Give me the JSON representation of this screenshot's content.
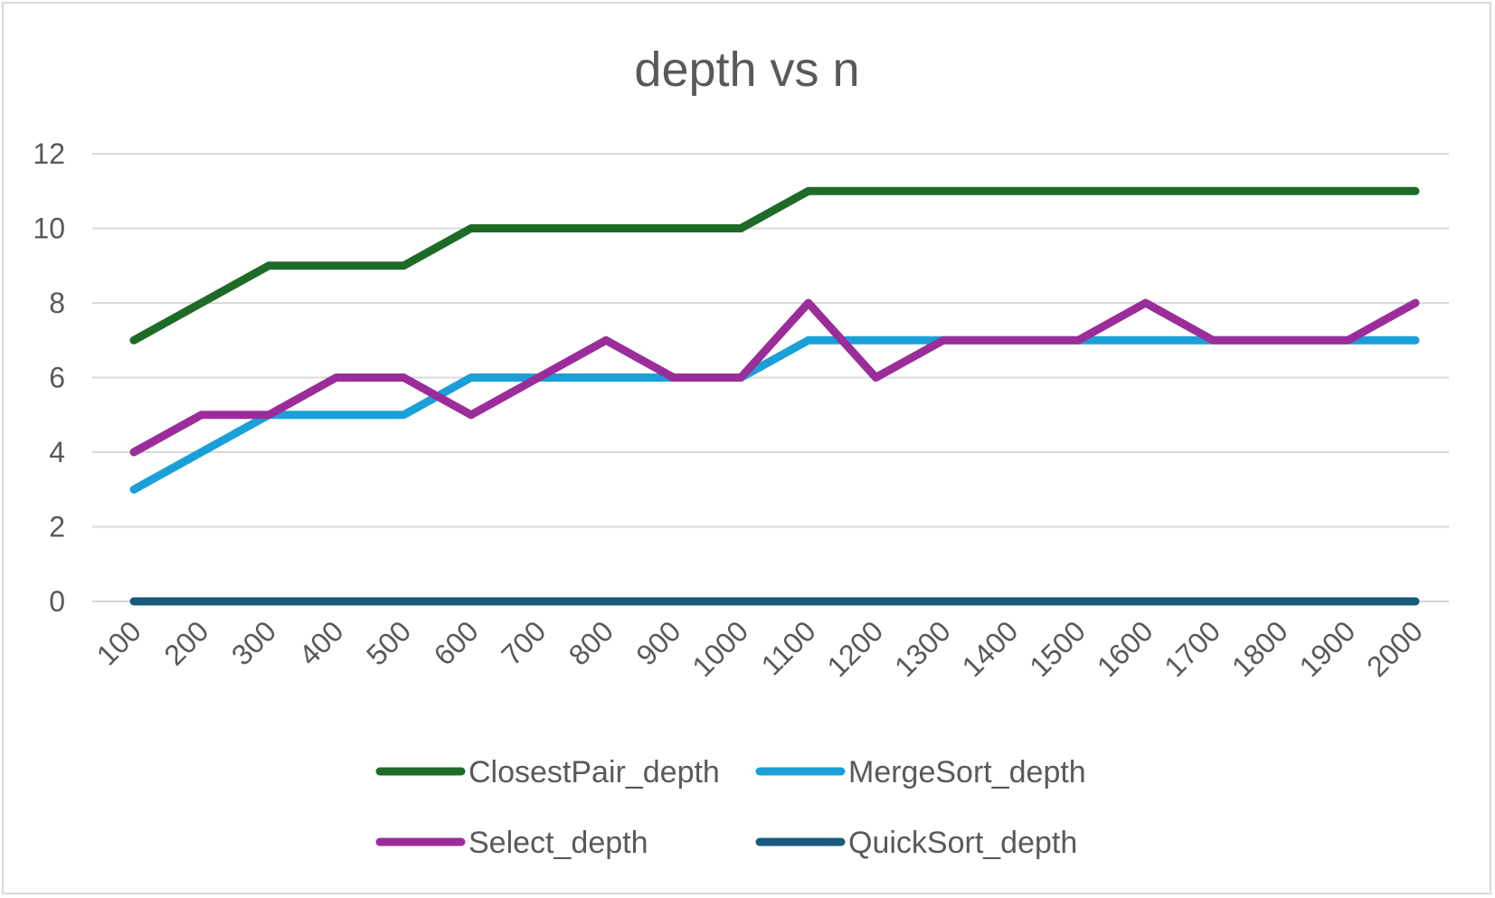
{
  "chart_data": {
    "type": "line",
    "title": "depth vs n",
    "xlabel": "",
    "ylabel": "",
    "categories": [
      "100",
      "200",
      "300",
      "400",
      "500",
      "600",
      "700",
      "800",
      "900",
      "1000",
      "1100",
      "1200",
      "1300",
      "1400",
      "1500",
      "1600",
      "1700",
      "1800",
      "1900",
      "2000"
    ],
    "ylim": [
      0,
      12
    ],
    "yticks": [
      0,
      2,
      4,
      6,
      8,
      10,
      12
    ],
    "grid": true,
    "legend_position": "bottom",
    "series": [
      {
        "name": "ClosestPair_depth",
        "color": "#1e6b28",
        "values": [
          7,
          8,
          9,
          9,
          9,
          10,
          10,
          10,
          10,
          10,
          11,
          11,
          11,
          11,
          11,
          11,
          11,
          11,
          11,
          11
        ]
      },
      {
        "name": "MergeSort_depth",
        "color": "#1aa0d8",
        "values": [
          3,
          4,
          5,
          5,
          5,
          6,
          6,
          6,
          6,
          6,
          7,
          7,
          7,
          7,
          7,
          7,
          7,
          7,
          7,
          7
        ]
      },
      {
        "name": "Select_depth",
        "color": "#9b2d9b",
        "values": [
          4,
          5,
          5,
          6,
          6,
          5,
          6,
          7,
          6,
          6,
          8,
          6,
          7,
          7,
          7,
          8,
          7,
          7,
          7,
          8
        ]
      },
      {
        "name": "QuickSort_depth",
        "color": "#175a7c",
        "values": [
          0,
          0,
          0,
          0,
          0,
          0,
          0,
          0,
          0,
          0,
          0,
          0,
          0,
          0,
          0,
          0,
          0,
          0,
          0,
          0
        ]
      }
    ]
  }
}
